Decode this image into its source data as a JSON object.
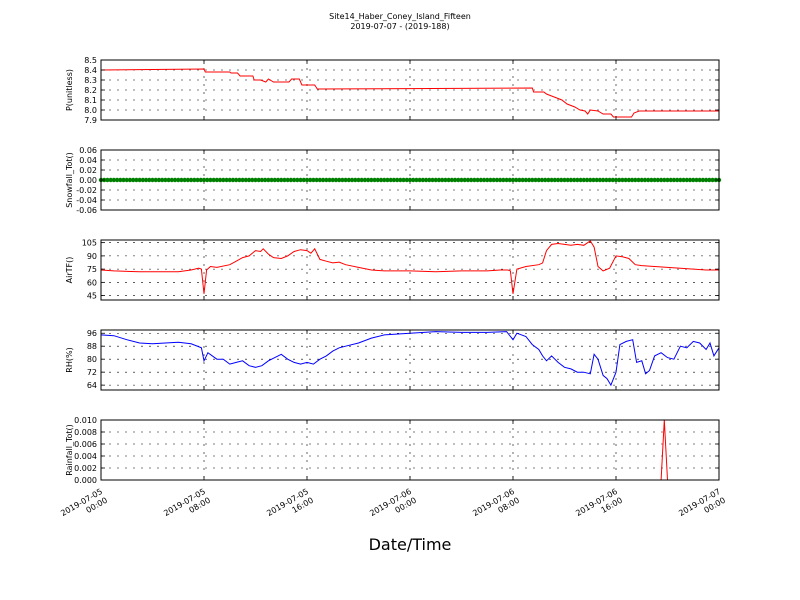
{
  "figure": {
    "title_line1": "Site14_Haber_Coney_Island_Fifteen",
    "title_line2": "2019-07-07 - (2019-188)",
    "xlabel": "Date/Time",
    "x_ticks": [
      {
        "line1": "2019-07-05",
        "line2": "00:00",
        "hour": 0
      },
      {
        "line1": "2019-07-05",
        "line2": "08:00",
        "hour": 8
      },
      {
        "line1": "2019-07-05",
        "line2": "16:00",
        "hour": 16
      },
      {
        "line1": "2019-07-06",
        "line2": "00:00",
        "hour": 24
      },
      {
        "line1": "2019-07-06",
        "line2": "08:00",
        "hour": 32
      },
      {
        "line1": "2019-07-06",
        "line2": "16:00",
        "hour": 40
      },
      {
        "line1": "2019-07-07",
        "line2": "00:00",
        "hour": 48
      }
    ]
  },
  "chart_data": [
    {
      "type": "line",
      "ylabel": "P(unitless)",
      "color": "#ff0000",
      "ylim": [
        7.9,
        8.5
      ],
      "yticks": [
        7.9,
        8.0,
        8.1,
        8.2,
        8.3,
        8.4,
        8.5
      ],
      "xlim_hours": [
        0,
        48
      ],
      "grid": true,
      "marker": "line",
      "points": [
        [
          0,
          8.4
        ],
        [
          8,
          8.41
        ],
        [
          8.1,
          8.38
        ],
        [
          10,
          8.38
        ],
        [
          10.1,
          8.37
        ],
        [
          10.6,
          8.37
        ],
        [
          10.8,
          8.34
        ],
        [
          11.8,
          8.34
        ],
        [
          11.9,
          8.3
        ],
        [
          12.4,
          8.3
        ],
        [
          12.8,
          8.28
        ],
        [
          13.0,
          8.31
        ],
        [
          13.4,
          8.28
        ],
        [
          14.6,
          8.28
        ],
        [
          14.8,
          8.31
        ],
        [
          15.4,
          8.31
        ],
        [
          15.6,
          8.25
        ],
        [
          16.6,
          8.25
        ],
        [
          16.8,
          8.21
        ],
        [
          33.5,
          8.22
        ],
        [
          33.6,
          8.18
        ],
        [
          34.4,
          8.18
        ],
        [
          34.6,
          8.16
        ],
        [
          35.0,
          8.14
        ],
        [
          35.4,
          8.12
        ],
        [
          35.8,
          8.1
        ],
        [
          36.2,
          8.06
        ],
        [
          36.8,
          8.03
        ],
        [
          37.2,
          8.0
        ],
        [
          37.6,
          7.99
        ],
        [
          37.8,
          7.96
        ],
        [
          38.0,
          8.0
        ],
        [
          38.6,
          7.99
        ],
        [
          39.0,
          7.96
        ],
        [
          39.6,
          7.96
        ],
        [
          39.8,
          7.93
        ],
        [
          41.2,
          7.93
        ],
        [
          41.4,
          7.97
        ],
        [
          41.8,
          7.99
        ],
        [
          48,
          7.99
        ]
      ]
    },
    {
      "type": "scatter",
      "ylabel": "Snowfall_Tot()",
      "color": "#008000",
      "ylim": [
        -0.06,
        0.06
      ],
      "yticks": [
        -0.06,
        -0.04,
        -0.02,
        0.0,
        0.02,
        0.04,
        0.06
      ],
      "xlim_hours": [
        0,
        48
      ],
      "grid": true,
      "marker": "dots",
      "constant_value": 0.0
    },
    {
      "type": "line",
      "ylabel": "AirTF()",
      "color": "#ff0000",
      "ylim": [
        40,
        108
      ],
      "yticks": [
        45,
        60,
        75,
        90,
        105
      ],
      "xlim_hours": [
        0,
        48
      ],
      "grid": true,
      "marker": "line",
      "points": [
        [
          0,
          74
        ],
        [
          1,
          73
        ],
        [
          3,
          72
        ],
        [
          5,
          72
        ],
        [
          6,
          72
        ],
        [
          7,
          74
        ],
        [
          7.6,
          76
        ],
        [
          7.8,
          75
        ],
        [
          8.0,
          47
        ],
        [
          8.2,
          74
        ],
        [
          8.5,
          78
        ],
        [
          9,
          77
        ],
        [
          10,
          80
        ],
        [
          10.5,
          84
        ],
        [
          11,
          88
        ],
        [
          11.5,
          90
        ],
        [
          12,
          96
        ],
        [
          12.4,
          95
        ],
        [
          12.6,
          98
        ],
        [
          13,
          92
        ],
        [
          13.4,
          88
        ],
        [
          14,
          87
        ],
        [
          14.5,
          90
        ],
        [
          15,
          95
        ],
        [
          15.5,
          97
        ],
        [
          16,
          96
        ],
        [
          16.3,
          93
        ],
        [
          16.6,
          98
        ],
        [
          17,
          86
        ],
        [
          17.5,
          84
        ],
        [
          18,
          82
        ],
        [
          18.5,
          83
        ],
        [
          19,
          80
        ],
        [
          20,
          77
        ],
        [
          21,
          74
        ],
        [
          22,
          73
        ],
        [
          24,
          73
        ],
        [
          26,
          72
        ],
        [
          28,
          73
        ],
        [
          30,
          73
        ],
        [
          31,
          74
        ],
        [
          31.6,
          74
        ],
        [
          31.8,
          73
        ],
        [
          32.0,
          47
        ],
        [
          32.3,
          75
        ],
        [
          33,
          78
        ],
        [
          34,
          80
        ],
        [
          34.3,
          82
        ],
        [
          34.6,
          96
        ],
        [
          35,
          103
        ],
        [
          35.5,
          104
        ],
        [
          36,
          103
        ],
        [
          36.5,
          102
        ],
        [
          37,
          103
        ],
        [
          37.5,
          102
        ],
        [
          38,
          107
        ],
        [
          38.3,
          100
        ],
        [
          38.6,
          78
        ],
        [
          39,
          73
        ],
        [
          39.5,
          76
        ],
        [
          40,
          90
        ],
        [
          40.5,
          89
        ],
        [
          41,
          87
        ],
        [
          41.5,
          80
        ],
        [
          42,
          79
        ],
        [
          43,
          78
        ],
        [
          44,
          77
        ],
        [
          45,
          76
        ],
        [
          46,
          75
        ],
        [
          47,
          74
        ],
        [
          48,
          74
        ]
      ]
    },
    {
      "type": "line",
      "ylabel": "RH(%)",
      "color": "#0000ff",
      "ylim": [
        61,
        98
      ],
      "yticks": [
        64,
        72,
        80,
        88,
        96
      ],
      "xlim_hours": [
        0,
        48
      ],
      "grid": true,
      "marker": "line",
      "points": [
        [
          0,
          95
        ],
        [
          1,
          94.5
        ],
        [
          2,
          92
        ],
        [
          3,
          90
        ],
        [
          4,
          89.5
        ],
        [
          5,
          90
        ],
        [
          6,
          90.5
        ],
        [
          7,
          89.5
        ],
        [
          7.8,
          87
        ],
        [
          8.0,
          79
        ],
        [
          8.3,
          84
        ],
        [
          9,
          80
        ],
        [
          9.5,
          80
        ],
        [
          10,
          77
        ],
        [
          10.5,
          78
        ],
        [
          11,
          79
        ],
        [
          11.5,
          76
        ],
        [
          12,
          75
        ],
        [
          12.5,
          76
        ],
        [
          13,
          79
        ],
        [
          13.5,
          81
        ],
        [
          14,
          83
        ],
        [
          14.5,
          80
        ],
        [
          15,
          78
        ],
        [
          15.5,
          77
        ],
        [
          16,
          78
        ],
        [
          16.5,
          77
        ],
        [
          17,
          80
        ],
        [
          17.5,
          82
        ],
        [
          18,
          85
        ],
        [
          18.5,
          87
        ],
        [
          19,
          88
        ],
        [
          20,
          90
        ],
        [
          21,
          93
        ],
        [
          22,
          95
        ],
        [
          24,
          96
        ],
        [
          26,
          97
        ],
        [
          28,
          96.5
        ],
        [
          30,
          96.5
        ],
        [
          31,
          96.8
        ],
        [
          31.5,
          97
        ],
        [
          32.0,
          92
        ],
        [
          32.3,
          96
        ],
        [
          33,
          94
        ],
        [
          33.5,
          89
        ],
        [
          34,
          86
        ],
        [
          34.3,
          82
        ],
        [
          34.6,
          79
        ],
        [
          35,
          82
        ],
        [
          35.5,
          78
        ],
        [
          36,
          75
        ],
        [
          36.5,
          74
        ],
        [
          37,
          72
        ],
        [
          37.5,
          72
        ],
        [
          38,
          71
        ],
        [
          38.3,
          83
        ],
        [
          38.6,
          80
        ],
        [
          39,
          70
        ],
        [
          39.3,
          68
        ],
        [
          39.6,
          64
        ],
        [
          40,
          72
        ],
        [
          40.3,
          89
        ],
        [
          40.8,
          91
        ],
        [
          41.3,
          92
        ],
        [
          41.6,
          78
        ],
        [
          42,
          79
        ],
        [
          42.3,
          71
        ],
        [
          42.6,
          73
        ],
        [
          43,
          82
        ],
        [
          43.5,
          84
        ],
        [
          44,
          81
        ],
        [
          44.5,
          80
        ],
        [
          45,
          88
        ],
        [
          45.5,
          87
        ],
        [
          46,
          91
        ],
        [
          46.5,
          90
        ],
        [
          47,
          86
        ],
        [
          47.3,
          90
        ],
        [
          47.6,
          82
        ],
        [
          48,
          87
        ]
      ]
    },
    {
      "type": "line",
      "ylabel": "Rainfall_Tot()",
      "color": "#ff0000",
      "ylim": [
        0,
        0.01
      ],
      "yticks": [
        0.0,
        0.002,
        0.004,
        0.006,
        0.008,
        0.01
      ],
      "ytick_labels": [
        "0.000",
        "0.002",
        "0.004",
        "0.006",
        "0.008",
        "0.010"
      ],
      "xlim_hours": [
        0,
        48
      ],
      "grid": true,
      "marker": "line",
      "points": [
        [
          0,
          0
        ],
        [
          43.5,
          0
        ],
        [
          43.75,
          0.01
        ],
        [
          44.0,
          0
        ],
        [
          48,
          0
        ]
      ]
    }
  ]
}
